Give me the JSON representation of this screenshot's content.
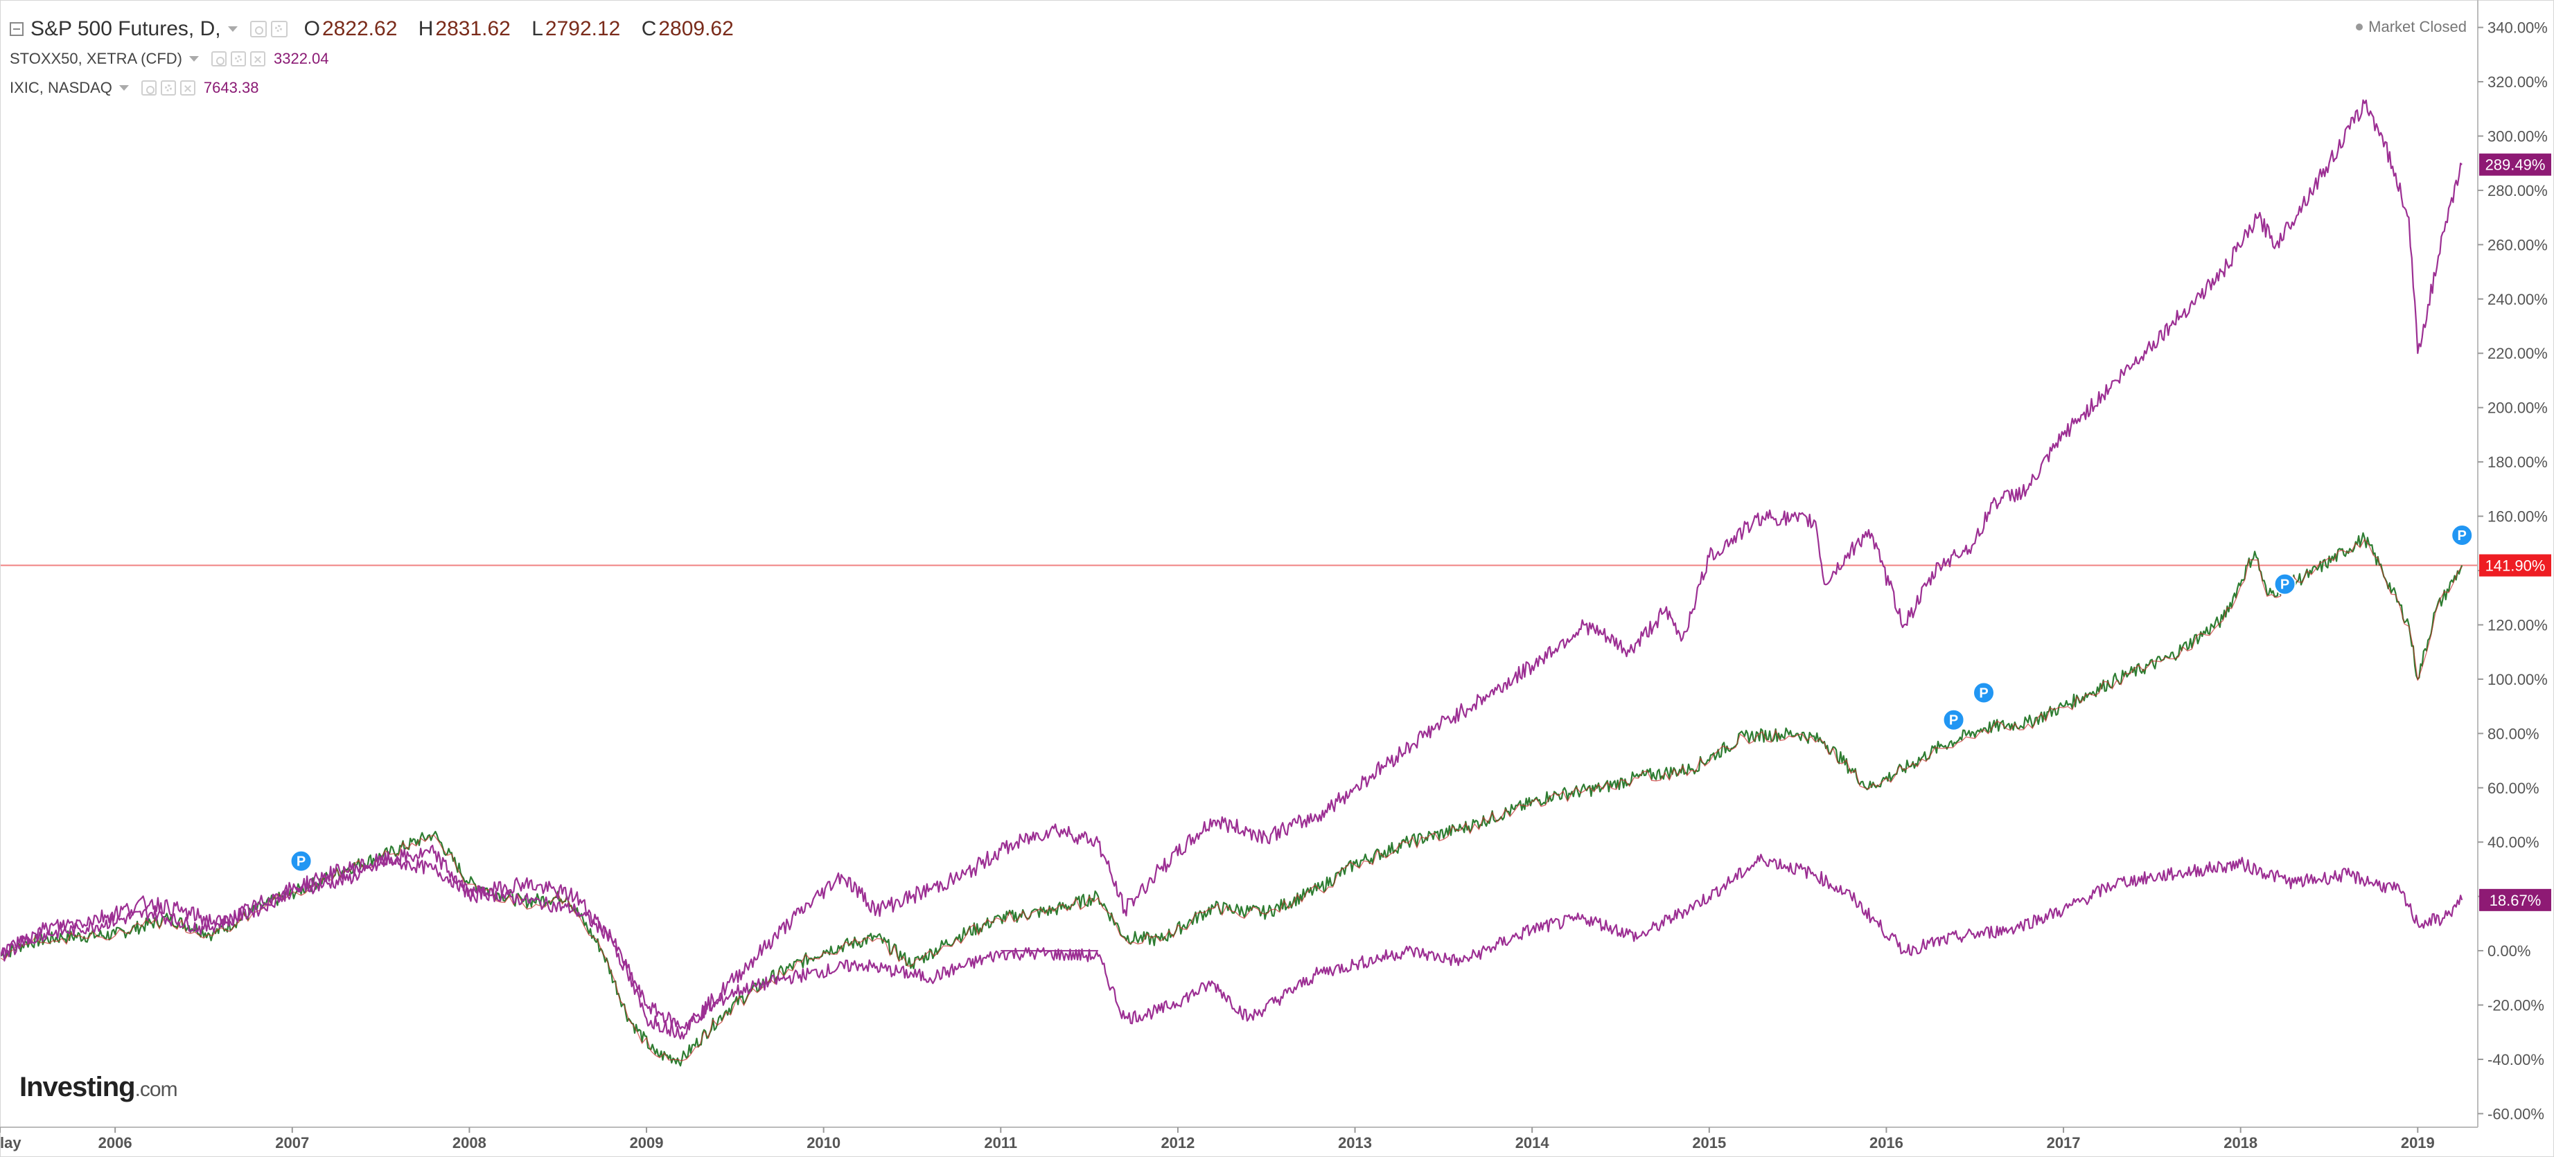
{
  "header": {
    "symbol": "S&P 500 Futures, D,",
    "ohlc": [
      {
        "key": "O",
        "value": "2822.62"
      },
      {
        "key": "H",
        "value": "2831.62"
      },
      {
        "key": "L",
        "value": "2792.12"
      },
      {
        "key": "C",
        "value": "2809.62"
      }
    ]
  },
  "compare": [
    {
      "label": "STOXX50, XETRA (CFD)",
      "value": "3322.04"
    },
    {
      "label": "IXIC, NASDAQ",
      "value": "7643.38"
    }
  ],
  "market_status": "Market Closed",
  "logo": {
    "text": "Investing",
    "suffix": ".com"
  },
  "colors": {
    "sp500_line": "#2e7d32",
    "sp500_down": "#c62828",
    "compare_line": "#9c2f93",
    "badge_purple": "#8e1a74",
    "badge_red": "#ee1d23",
    "pivot_marker": "#2196f3"
  },
  "chart_data": {
    "type": "line",
    "y_unit": "%",
    "ylim": [
      -65,
      345
    ],
    "xlim": [
      2005.35,
      2019.3
    ],
    "x_ticks": [
      {
        "x": 2005.35,
        "label": "lay"
      },
      {
        "x": 2006,
        "label": "2006"
      },
      {
        "x": 2007,
        "label": "2007"
      },
      {
        "x": 2008,
        "label": "2008"
      },
      {
        "x": 2009,
        "label": "2009"
      },
      {
        "x": 2010,
        "label": "2010"
      },
      {
        "x": 2011,
        "label": "2011"
      },
      {
        "x": 2012,
        "label": "2012"
      },
      {
        "x": 2013,
        "label": "2013"
      },
      {
        "x": 2014,
        "label": "2014"
      },
      {
        "x": 2015,
        "label": "2015"
      },
      {
        "x": 2016,
        "label": "2016"
      },
      {
        "x": 2017,
        "label": "2017"
      },
      {
        "x": 2018,
        "label": "2018"
      },
      {
        "x": 2019,
        "label": "2019"
      }
    ],
    "y_ticks": [
      {
        "y": 340,
        "label": "340.00%"
      },
      {
        "y": 320,
        "label": "320.00%"
      },
      {
        "y": 300,
        "label": "300.00%"
      },
      {
        "y": 280,
        "label": "280.00%"
      },
      {
        "y": 260,
        "label": "260.00%"
      },
      {
        "y": 240,
        "label": "240.00%"
      },
      {
        "y": 220,
        "label": "220.00%"
      },
      {
        "y": 200,
        "label": "200.00%"
      },
      {
        "y": 180,
        "label": "180.00%"
      },
      {
        "y": 160,
        "label": "160.00%"
      },
      {
        "y": 140,
        "label": "140.00%"
      },
      {
        "y": 120,
        "label": "120.00%"
      },
      {
        "y": 100,
        "label": "100.00%"
      },
      {
        "y": 80,
        "label": "80.00%"
      },
      {
        "y": 60,
        "label": "60.00%"
      },
      {
        "y": 40,
        "label": "40.00%"
      },
      {
        "y": 20,
        "label": "20.00%"
      },
      {
        "y": 0,
        "label": "0.00%"
      },
      {
        "y": -20,
        "label": "-20.00%"
      },
      {
        "y": -40,
        "label": "-40.00%"
      },
      {
        "y": -60,
        "label": "-60.00%"
      }
    ],
    "price_line": {
      "y": 141.9,
      "label": "141.90%"
    },
    "series": [
      {
        "x": [
          2005.35,
          2005.5,
          2005.7,
          2006.0,
          2006.3,
          2006.55,
          2006.85,
          2007.1,
          2007.3,
          2007.55,
          2007.8,
          2008.0,
          2008.3,
          2008.55,
          2008.75,
          2008.9,
          2009.05,
          2009.2,
          2009.45,
          2009.7,
          2010.0,
          2010.3,
          2010.5,
          2010.75,
          2011.0,
          2011.3,
          2011.55,
          2011.7,
          2011.9,
          2012.2,
          2012.5,
          2012.8,
          2013.0,
          2013.3,
          2013.6,
          2013.9,
          2014.1,
          2014.4,
          2014.6,
          2014.9,
          2015.2,
          2015.5,
          2015.65,
          2015.9,
          2016.1,
          2016.3,
          2016.55,
          2016.8,
          2017.0,
          2017.3,
          2017.6,
          2017.9,
          2018.08,
          2018.15,
          2018.4,
          2018.7,
          2018.8,
          2018.95,
          2019.0,
          2019.1,
          2019.25
        ],
        "values": [
          -2,
          3,
          5,
          6,
          12,
          6,
          17,
          24,
          30,
          36,
          43,
          25,
          18,
          20,
          0,
          -25,
          -38,
          -40,
          -22,
          -10,
          0,
          5,
          -5,
          5,
          12,
          15,
          20,
          5,
          4,
          16,
          14,
          23,
          32,
          40,
          45,
          52,
          57,
          60,
          64,
          67,
          79,
          80,
          77,
          60,
          67,
          75,
          82,
          84,
          90,
          100,
          108,
          122,
          147,
          131,
          139,
          152,
          140,
          120,
          100,
          125,
          141.9
        ]
      },
      {
        "x": [
          2005.35,
          2005.5,
          2005.8,
          2006.2,
          2006.5,
          2006.8,
          2007.0,
          2007.3,
          2007.55,
          2007.8,
          2008.0,
          2008.3,
          2008.6,
          2008.8,
          2009.0,
          2009.2,
          2009.5,
          2009.8,
          2010.2,
          2010.6,
          2011.0,
          2011.2,
          2011.55,
          2011.7,
          2011.9,
          2012.2,
          2012.4,
          2012.8,
          2013.0,
          2013.3,
          2013.6,
          2014.0,
          2014.3,
          2014.6,
          2015.0,
          2015.3,
          2015.6,
          2015.8,
          2016.1,
          2016.4,
          2016.7,
          2017.0,
          2017.3,
          2017.6,
          2018.0,
          2018.3,
          2018.6,
          2018.9,
          2019.0,
          2019.15,
          2019.25
        ],
        "values": [
          -2,
          5,
          8,
          14,
          8,
          15,
          22,
          26,
          33,
          30,
          22,
          19,
          15,
          5,
          -20,
          -28,
          -15,
          -10,
          -5,
          -10,
          -1,
          -1,
          -2,
          -25,
          -22,
          -12,
          -25,
          -8,
          -5,
          0,
          -4,
          8,
          12,
          5,
          20,
          34,
          28,
          20,
          0,
          5,
          8,
          15,
          25,
          28,
          32,
          25,
          28,
          22,
          10,
          12,
          18.67
        ]
      },
      {
        "x": [
          2005.35,
          2005.6,
          2005.9,
          2006.2,
          2006.6,
          2006.9,
          2007.2,
          2007.5,
          2007.8,
          2008.0,
          2008.3,
          2008.6,
          2008.8,
          2009.0,
          2009.2,
          2009.5,
          2009.8,
          2010.1,
          2010.3,
          2010.5,
          2010.8,
          2011.0,
          2011.3,
          2011.55,
          2011.7,
          2011.9,
          2012.2,
          2012.5,
          2012.8,
          2013.0,
          2013.4,
          2013.8,
          2014.0,
          2014.3,
          2014.55,
          2014.75,
          2014.85,
          2015.0,
          2015.3,
          2015.6,
          2015.65,
          2015.9,
          2016.1,
          2016.3,
          2016.5,
          2016.6,
          2016.8,
          2017.0,
          2017.3,
          2017.6,
          2017.9,
          2018.1,
          2018.2,
          2018.5,
          2018.7,
          2018.8,
          2018.95,
          2019.0,
          2019.15,
          2019.25
        ],
        "values": [
          -2,
          8,
          12,
          18,
          10,
          20,
          28,
          33,
          36,
          20,
          25,
          20,
          5,
          -25,
          -30,
          -10,
          10,
          28,
          15,
          20,
          28,
          37,
          45,
          40,
          15,
          30,
          48,
          42,
          50,
          60,
          80,
          96,
          105,
          120,
          110,
          125,
          115,
          145,
          160,
          158,
          135,
          155,
          120,
          142,
          150,
          165,
          170,
          190,
          210,
          230,
          250,
          270,
          260,
          290,
          312,
          300,
          270,
          220,
          265,
          289.49
        ]
      }
    ],
    "end_labels": [
      "141.90%",
      "289.49%",
      "18.67%"
    ],
    "pivot_markers": [
      {
        "x": 2007.05,
        "y": 33,
        "label": "P"
      },
      {
        "x": 2016.38,
        "y": 85,
        "label": "P"
      },
      {
        "x": 2016.55,
        "y": 95,
        "label": "P"
      },
      {
        "x": 2018.25,
        "y": 135,
        "label": "P"
      },
      {
        "x": 2019.25,
        "y": 153,
        "label": "P"
      }
    ],
    "annotation_segment": {
      "x": [
        2011.0,
        2011.55
      ],
      "y": 0
    }
  }
}
